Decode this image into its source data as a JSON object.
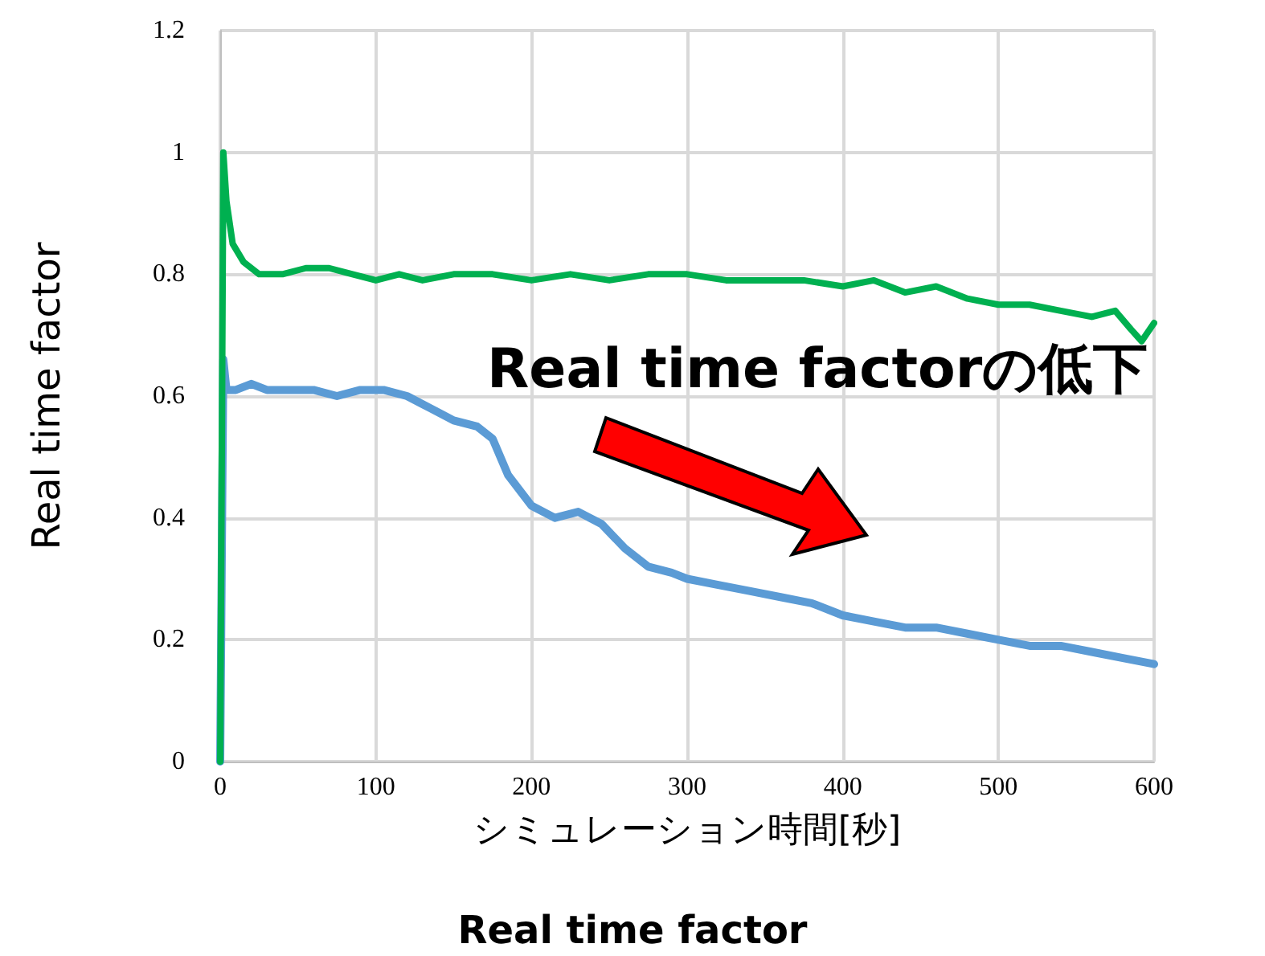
{
  "chart_data": {
    "type": "line",
    "title": "Real time factor",
    "xlabel": "シミュレーション時間[秒]",
    "ylabel": "Real time factor",
    "annotations": [
      "Real time factorの低下"
    ],
    "xlim": [
      0,
      600
    ],
    "xticks": [
      0,
      100,
      200,
      300,
      400,
      500,
      600
    ],
    "ylim": [
      0,
      1.2
    ],
    "yticks": [
      0,
      0.2,
      0.4,
      0.6,
      0.8,
      1,
      1.2
    ],
    "grid": true,
    "marker": "none",
    "line_style": "solid",
    "series": [
      {
        "color": "#00b050",
        "x": [
          0,
          2,
          4,
          8,
          15,
          25,
          40,
          55,
          70,
          85,
          100,
          115,
          130,
          150,
          175,
          200,
          225,
          250,
          275,
          300,
          325,
          350,
          375,
          400,
          420,
          440,
          460,
          480,
          500,
          520,
          540,
          560,
          575,
          585,
          592,
          600
        ],
        "values": [
          0,
          1.0,
          0.92,
          0.85,
          0.82,
          0.8,
          0.8,
          0.81,
          0.81,
          0.8,
          0.79,
          0.8,
          0.79,
          0.8,
          0.8,
          0.79,
          0.8,
          0.79,
          0.8,
          0.8,
          0.79,
          0.79,
          0.79,
          0.78,
          0.79,
          0.77,
          0.78,
          0.76,
          0.75,
          0.75,
          0.74,
          0.73,
          0.74,
          0.71,
          0.69,
          0.72
        ]
      },
      {
        "color": "#5b9bd5",
        "x": [
          0,
          2,
          4,
          10,
          20,
          30,
          45,
          60,
          75,
          90,
          105,
          120,
          135,
          150,
          165,
          175,
          185,
          200,
          215,
          230,
          245,
          260,
          275,
          290,
          300,
          320,
          340,
          360,
          380,
          400,
          420,
          440,
          460,
          480,
          500,
          520,
          540,
          560,
          580,
          600
        ],
        "values": [
          0,
          0.66,
          0.61,
          0.61,
          0.62,
          0.61,
          0.61,
          0.61,
          0.6,
          0.61,
          0.61,
          0.6,
          0.58,
          0.56,
          0.55,
          0.53,
          0.47,
          0.42,
          0.4,
          0.41,
          0.39,
          0.35,
          0.32,
          0.31,
          0.3,
          0.29,
          0.28,
          0.27,
          0.26,
          0.24,
          0.23,
          0.22,
          0.22,
          0.21,
          0.2,
          0.19,
          0.19,
          0.18,
          0.17,
          0.16
        ]
      }
    ]
  }
}
